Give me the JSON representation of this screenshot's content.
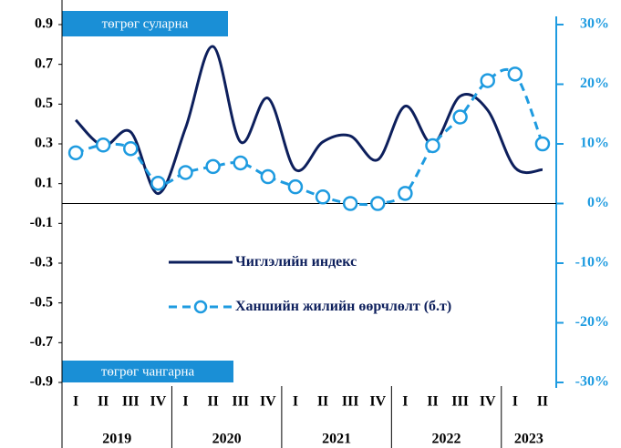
{
  "chart_data": {
    "type": "line",
    "categories": [
      "I",
      "II",
      "III",
      "IV",
      "I",
      "II",
      "III",
      "IV",
      "I",
      "II",
      "III",
      "IV",
      "I",
      "II",
      "III",
      "IV",
      "I",
      "II"
    ],
    "years": [
      "2019",
      "2020",
      "2021",
      "2022",
      "2023"
    ],
    "series": [
      {
        "name": "Чиглэлийн индекс",
        "color": "#0d1f5c",
        "style": "solid",
        "values": [
          0.42,
          0.29,
          0.36,
          0.05,
          0.38,
          0.79,
          0.31,
          0.53,
          0.17,
          0.31,
          0.34,
          0.22,
          0.49,
          0.3,
          0.54,
          0.47,
          0.18,
          0.17
        ]
      },
      {
        "name": "Ханшийн жилийн өөрчлөлт (б.т)",
        "color": "#1e9be0",
        "style": "dashed",
        "marker": "circle",
        "axis": "y2",
        "values": [
          8.5,
          9.8,
          9.2,
          3.4,
          5.2,
          6.2,
          6.8,
          4.5,
          2.8,
          1.1,
          0,
          0,
          1.7,
          9.7,
          14.5,
          20.6,
          21.7,
          10.0
        ]
      }
    ],
    "ylim": [
      -0.9,
      0.9
    ],
    "yticks": [
      0.9,
      0.7,
      0.5,
      0.3,
      0.1,
      -0.1,
      -0.3,
      -0.5,
      -0.7,
      -0.9
    ],
    "y2lim": [
      -30,
      30
    ],
    "y2ticks": [
      {
        "value": 30,
        "label": "30%"
      },
      {
        "value": 20,
        "label": "20%"
      },
      {
        "value": 10,
        "label": "10%"
      },
      {
        "value": 0,
        "label": "0%"
      },
      {
        "value": -10,
        "label": "-10%"
      },
      {
        "value": -20,
        "label": "-20%"
      },
      {
        "value": -30,
        "label": "-30%"
      }
    ],
    "annotations": [
      "төгрөг суларна",
      "төгрөг чангарна"
    ]
  }
}
